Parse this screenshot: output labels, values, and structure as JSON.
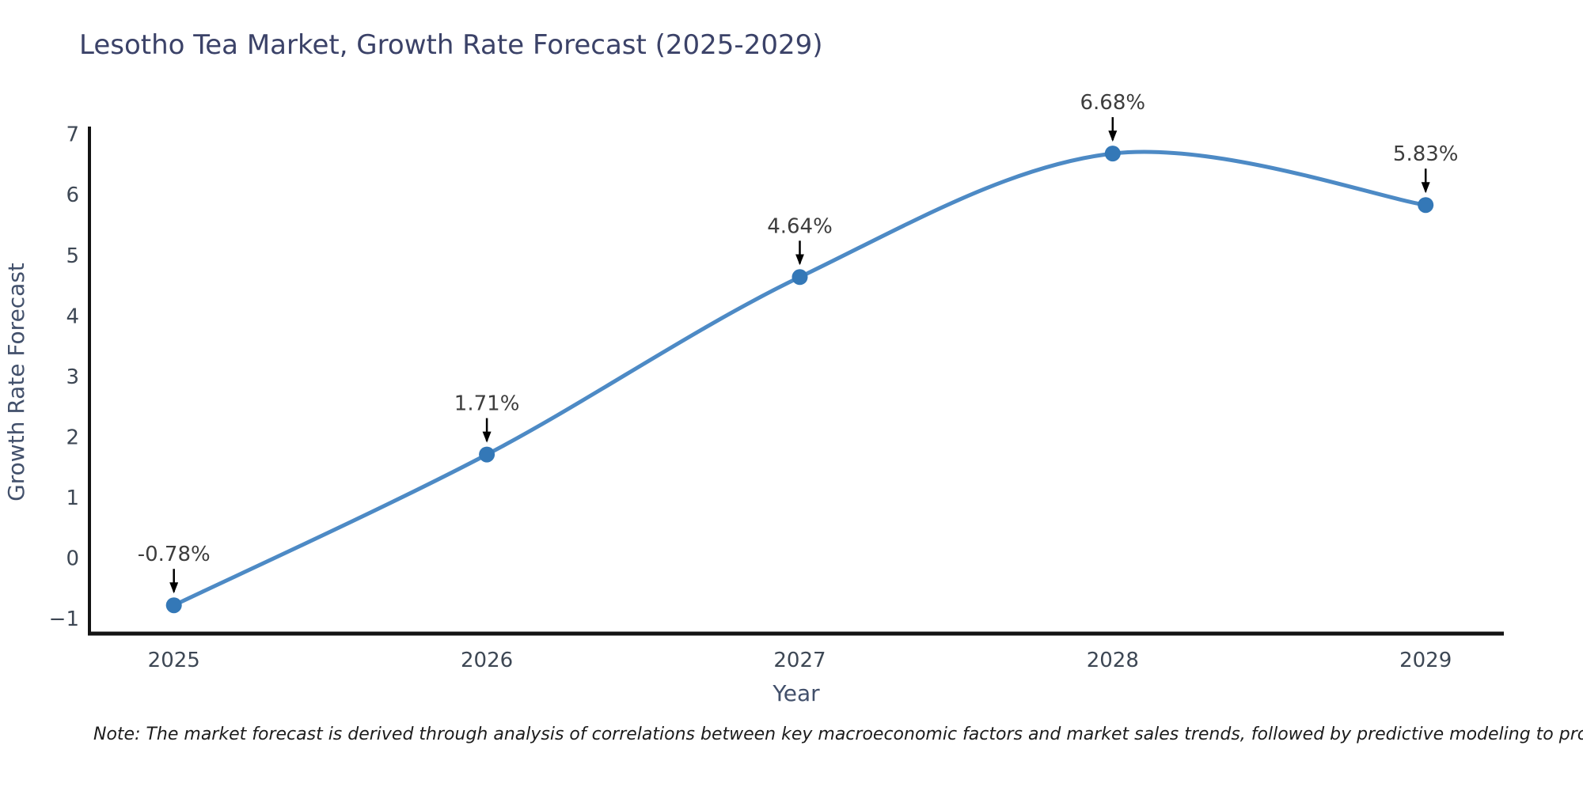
{
  "note": "Note: The market forecast is derived through analysis of correlations between key macroeconomic factors and market sales trends, followed by predictive modeling to project future sales",
  "chart_data": {
    "type": "line",
    "title": "Lesotho Tea Market, Growth Rate Forecast (2025-2029)",
    "xlabel": "Year",
    "ylabel": "Growth Rate Forecast",
    "x": [
      2025,
      2026,
      2027,
      2028,
      2029
    ],
    "y": [
      -0.78,
      1.71,
      4.64,
      6.68,
      5.83
    ],
    "point_labels": [
      "-0.78%",
      "1.71%",
      "4.64%",
      "6.68%",
      "5.83%"
    ],
    "xtick_labels": [
      "2025",
      "2026",
      "2027",
      "2028",
      "2029"
    ],
    "ytick_values": [
      7,
      6,
      5,
      4,
      3,
      2,
      1,
      0,
      -1
    ],
    "ytick_labels": [
      "7",
      "6",
      "5",
      "4",
      "3",
      "2",
      "1",
      "0",
      "−1"
    ],
    "xlim": [
      2024.73,
      2029.25
    ],
    "ylim": [
      -1.3,
      7.1
    ],
    "line_shape": "spline",
    "grid": false,
    "legend": "none",
    "markers": true,
    "annotations_have_arrows": true,
    "colors": {
      "line": "#4d8ac5",
      "marker": "#3478b7",
      "axis_line": "#141414",
      "title": "#3b4268",
      "axis_title": "#42506b",
      "tick": "#3d4754",
      "annotation_text": "#3d3d3d",
      "annotation_arrow": "#000000",
      "note_text": "#1c1c1c",
      "background": "#ffffff"
    }
  }
}
